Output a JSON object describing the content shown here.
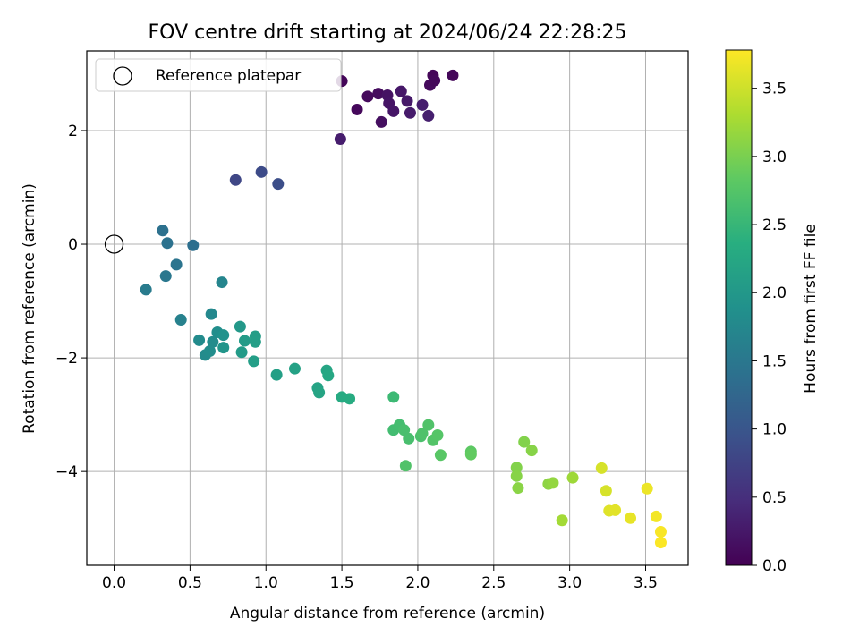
{
  "chart_data": {
    "type": "scatter",
    "title": "FOV centre drift starting at 2024/06/24 22:28:25",
    "xlabel": "Angular distance from reference (arcmin)",
    "ylabel": "Rotation from reference (arcmin)",
    "xlim": [
      -0.18,
      3.78
    ],
    "ylim": [
      -5.65,
      3.4
    ],
    "x_ticks": [
      "0.0",
      "0.5",
      "1.0",
      "1.5",
      "2.0",
      "2.5",
      "3.0",
      "3.5"
    ],
    "y_ticks": [
      "2",
      "0",
      "−2",
      "−4"
    ],
    "grid": true,
    "legend": {
      "position": "top-left",
      "entries": [
        "Reference platepar"
      ]
    },
    "colorbar": {
      "label": "Hours from first FF file",
      "colormap": "viridis",
      "range": [
        0.0,
        3.78
      ],
      "ticks": [
        "0.0",
        "0.5",
        "1.0",
        "1.5",
        "2.0",
        "2.5",
        "3.0",
        "3.5"
      ]
    },
    "reference_point": {
      "x": 0.0,
      "y": 0.0
    },
    "points": [
      {
        "x": 1.5,
        "y": 2.87,
        "t": 0.05
      },
      {
        "x": 1.6,
        "y": 2.37,
        "t": 0.08
      },
      {
        "x": 1.67,
        "y": 2.6,
        "t": 0.1
      },
      {
        "x": 1.74,
        "y": 2.65,
        "t": 0.12
      },
      {
        "x": 1.76,
        "y": 2.15,
        "t": 0.15
      },
      {
        "x": 1.8,
        "y": 2.62,
        "t": 0.18
      },
      {
        "x": 1.81,
        "y": 2.48,
        "t": 0.2
      },
      {
        "x": 1.84,
        "y": 2.34,
        "t": 0.22
      },
      {
        "x": 1.89,
        "y": 2.69,
        "t": 0.24
      },
      {
        "x": 1.93,
        "y": 2.52,
        "t": 0.26
      },
      {
        "x": 1.95,
        "y": 2.31,
        "t": 0.28
      },
      {
        "x": 2.03,
        "y": 2.45,
        "t": 0.3
      },
      {
        "x": 2.07,
        "y": 2.26,
        "t": 0.32
      },
      {
        "x": 2.08,
        "y": 2.8,
        "t": 0.1
      },
      {
        "x": 2.1,
        "y": 2.97,
        "t": 0.05
      },
      {
        "x": 2.11,
        "y": 2.88,
        "t": 0.07
      },
      {
        "x": 2.23,
        "y": 2.97,
        "t": 0.06
      },
      {
        "x": 1.49,
        "y": 1.85,
        "t": 0.3
      },
      {
        "x": 0.8,
        "y": 1.13,
        "t": 0.8
      },
      {
        "x": 0.97,
        "y": 1.27,
        "t": 0.85
      },
      {
        "x": 1.08,
        "y": 1.06,
        "t": 0.9
      },
      {
        "x": 0.32,
        "y": 0.24,
        "t": 1.4
      },
      {
        "x": 0.35,
        "y": 0.02,
        "t": 1.42
      },
      {
        "x": 0.52,
        "y": -0.02,
        "t": 1.38
      },
      {
        "x": 0.41,
        "y": -0.36,
        "t": 1.45
      },
      {
        "x": 0.34,
        "y": -0.56,
        "t": 1.5
      },
      {
        "x": 0.21,
        "y": -0.8,
        "t": 1.55
      },
      {
        "x": 0.71,
        "y": -0.67,
        "t": 1.7
      },
      {
        "x": 0.44,
        "y": -1.33,
        "t": 1.65
      },
      {
        "x": 0.64,
        "y": -1.23,
        "t": 1.75
      },
      {
        "x": 0.56,
        "y": -1.69,
        "t": 1.8
      },
      {
        "x": 0.68,
        "y": -1.55,
        "t": 1.85
      },
      {
        "x": 0.65,
        "y": -1.72,
        "t": 1.82
      },
      {
        "x": 0.72,
        "y": -1.6,
        "t": 1.9
      },
      {
        "x": 0.6,
        "y": -1.95,
        "t": 1.8
      },
      {
        "x": 0.63,
        "y": -1.88,
        "t": 1.83
      },
      {
        "x": 0.72,
        "y": -1.82,
        "t": 1.95
      },
      {
        "x": 0.83,
        "y": -1.45,
        "t": 2.0
      },
      {
        "x": 0.86,
        "y": -1.7,
        "t": 2.05
      },
      {
        "x": 0.84,
        "y": -1.9,
        "t": 2.05
      },
      {
        "x": 0.93,
        "y": -1.62,
        "t": 2.08
      },
      {
        "x": 0.93,
        "y": -1.72,
        "t": 2.1
      },
      {
        "x": 0.92,
        "y": -2.06,
        "t": 2.1
      },
      {
        "x": 1.07,
        "y": -2.3,
        "t": 2.12
      },
      {
        "x": 1.19,
        "y": -2.19,
        "t": 2.15
      },
      {
        "x": 1.34,
        "y": -2.53,
        "t": 2.18
      },
      {
        "x": 1.35,
        "y": -2.61,
        "t": 2.2
      },
      {
        "x": 1.4,
        "y": -2.22,
        "t": 2.22
      },
      {
        "x": 1.41,
        "y": -2.31,
        "t": 2.25
      },
      {
        "x": 1.5,
        "y": -2.69,
        "t": 2.3
      },
      {
        "x": 1.55,
        "y": -2.72,
        "t": 2.32
      },
      {
        "x": 1.84,
        "y": -2.69,
        "t": 2.55
      },
      {
        "x": 1.84,
        "y": -3.27,
        "t": 2.6
      },
      {
        "x": 1.88,
        "y": -3.18,
        "t": 2.62
      },
      {
        "x": 1.91,
        "y": -3.27,
        "t": 2.65
      },
      {
        "x": 1.94,
        "y": -3.42,
        "t": 2.65
      },
      {
        "x": 2.02,
        "y": -3.38,
        "t": 2.68
      },
      {
        "x": 2.03,
        "y": -3.33,
        "t": 2.7
      },
      {
        "x": 2.07,
        "y": -3.18,
        "t": 2.72
      },
      {
        "x": 2.1,
        "y": -3.45,
        "t": 2.74
      },
      {
        "x": 2.13,
        "y": -3.36,
        "t": 2.76
      },
      {
        "x": 1.92,
        "y": -3.9,
        "t": 2.72
      },
      {
        "x": 2.15,
        "y": -3.71,
        "t": 2.78
      },
      {
        "x": 2.35,
        "y": -3.65,
        "t": 2.82
      },
      {
        "x": 2.35,
        "y": -3.7,
        "t": 2.85
      },
      {
        "x": 2.65,
        "y": -3.93,
        "t": 3.05
      },
      {
        "x": 2.65,
        "y": -4.08,
        "t": 3.08
      },
      {
        "x": 2.66,
        "y": -4.29,
        "t": 3.1
      },
      {
        "x": 2.7,
        "y": -3.48,
        "t": 3.05
      },
      {
        "x": 2.75,
        "y": -3.63,
        "t": 3.08
      },
      {
        "x": 2.86,
        "y": -4.22,
        "t": 3.12
      },
      {
        "x": 2.89,
        "y": -4.2,
        "t": 3.15
      },
      {
        "x": 2.95,
        "y": -4.86,
        "t": 3.25
      },
      {
        "x": 3.02,
        "y": -4.11,
        "t": 3.22
      },
      {
        "x": 3.21,
        "y": -3.94,
        "t": 3.55
      },
      {
        "x": 3.24,
        "y": -4.34,
        "t": 3.55
      },
      {
        "x": 3.26,
        "y": -4.69,
        "t": 3.6
      },
      {
        "x": 3.3,
        "y": -4.68,
        "t": 3.62
      },
      {
        "x": 3.4,
        "y": -4.82,
        "t": 3.65
      },
      {
        "x": 3.51,
        "y": -4.3,
        "t": 3.68
      },
      {
        "x": 3.57,
        "y": -4.79,
        "t": 3.72
      },
      {
        "x": 3.6,
        "y": -5.06,
        "t": 3.75
      },
      {
        "x": 3.6,
        "y": -5.25,
        "t": 3.77
      }
    ]
  }
}
